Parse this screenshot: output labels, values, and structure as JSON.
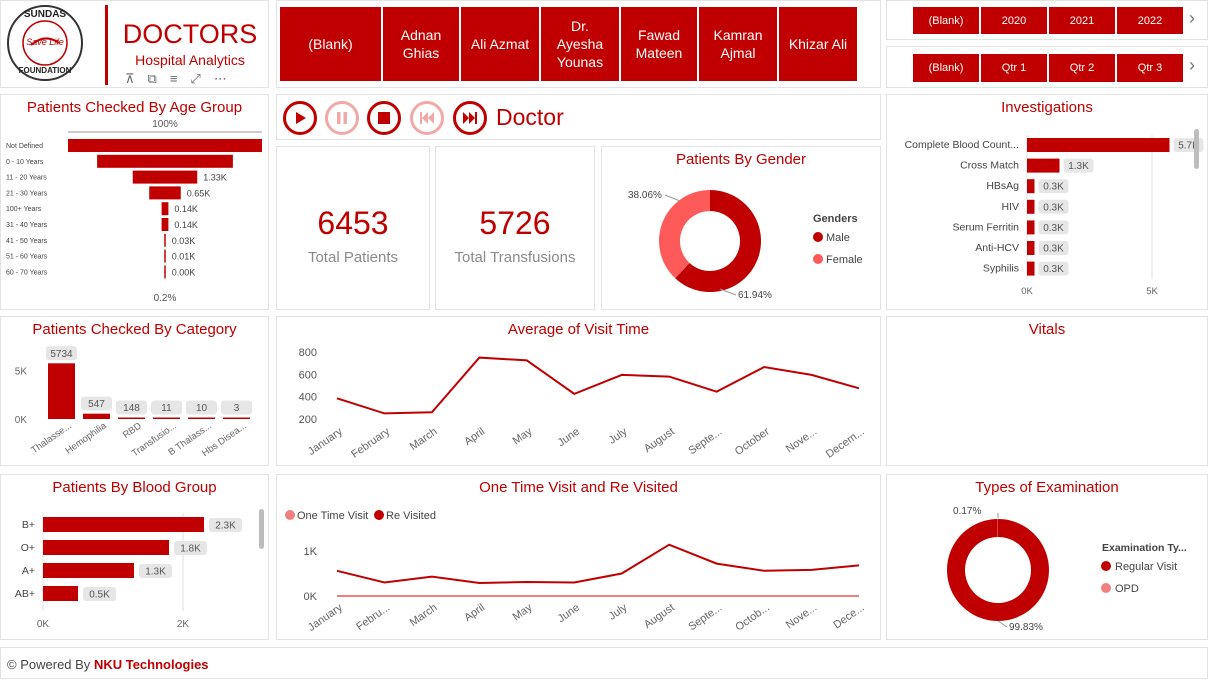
{
  "brand": {
    "logo_top": "SUNDAS",
    "logo_mid": "Save Life",
    "logo_bottom": "FOUNDATION",
    "title": "DOCTORS",
    "subtitle": "Hospital Analytics"
  },
  "doctor_slicer": {
    "items": [
      "(Blank)",
      "Adnan Ghias",
      "Ali Azmat",
      "Dr. Ayesha Younas",
      "Fawad Mateen",
      "Kamran Ajmal",
      "Khizar Ali"
    ]
  },
  "year_slicer": {
    "items": [
      "(Blank)",
      "2020",
      "2021",
      "2022"
    ]
  },
  "quarter_slicer": {
    "items": [
      "(Blank)",
      "Qtr 1",
      "Qtr 2",
      "Qtr 3"
    ]
  },
  "play_axis": {
    "label": "Doctor"
  },
  "kpis": {
    "total_patients": {
      "value": "6453",
      "label": "Total Patients"
    },
    "total_transfusions": {
      "value": "5726",
      "label": "Total Transfusions"
    }
  },
  "colors": {
    "accent": "#c00000",
    "light": "#ff5a5a",
    "pink": "#f08080",
    "grey_chip": "#e6e6e6"
  },
  "footer": {
    "prefix": "Powered By",
    "company": "NKU Technologies",
    "copyright": "©"
  },
  "charts": {
    "age_group": {
      "type": "funnel",
      "title": "Patients Checked By Age Group",
      "top_pct": "100%",
      "bottom_pct": "0.2%",
      "categories": [
        "Not Defined",
        "0 - 10 Years",
        "11 - 20 Years",
        "21 - 30 Years",
        "100+ Years",
        "31 - 40 Years",
        "41 - 50 Years",
        "51 - 60 Years",
        "60 - 70 Years"
      ],
      "values": [
        4.0,
        2.8,
        1.33,
        0.65,
        0.14,
        0.14,
        0.03,
        0.01,
        0.004
      ],
      "labels": [
        "",
        "",
        "1.33K",
        "0.65K",
        "0.14K",
        "0.14K",
        "0.03K",
        "0.01K",
        "0.00K"
      ]
    },
    "gender": {
      "type": "pie",
      "title": "Patients By Gender",
      "legend_title": "Genders",
      "categories": [
        "Male",
        "Female"
      ],
      "values": [
        61.94,
        38.06
      ],
      "labels": [
        "61.94%",
        "38.06%"
      ]
    },
    "investigations": {
      "type": "bar",
      "title": "Investigations",
      "categories": [
        "Complete Blood Count...",
        "Cross Match",
        "HBsAg",
        "HIV",
        "Serum Ferritin",
        "Anti-HCV",
        "Syphilis"
      ],
      "values": [
        5.7,
        1.3,
        0.3,
        0.3,
        0.3,
        0.3,
        0.3
      ],
      "labels": [
        "5.7K",
        "1.3K",
        "0.3K",
        "0.3K",
        "0.3K",
        "0.3K",
        "0.3K"
      ],
      "xticks": [
        "0K",
        "5K"
      ],
      "xlim": [
        0,
        6
      ]
    },
    "category": {
      "type": "bar",
      "title": "Patients Checked By Category",
      "categories": [
        "Thalasse...",
        "Hemophilia",
        "RBD",
        "Transfusio...",
        "B Thalass...",
        "Hbs Disea..."
      ],
      "values": [
        5734,
        547,
        148,
        11,
        10,
        3
      ],
      "labels": [
        "5734",
        "547",
        "148",
        "11",
        "10",
        "3"
      ],
      "yticks": [
        "5K",
        "0K"
      ],
      "ylim": [
        0,
        7000
      ]
    },
    "visit_time": {
      "type": "line",
      "title": "Average of Visit Time",
      "categories": [
        "January",
        "February",
        "March",
        "April",
        "May",
        "June",
        "July",
        "August",
        "Septe...",
        "October",
        "Nove...",
        "Decem..."
      ],
      "values": [
        385,
        250,
        260,
        750,
        725,
        425,
        595,
        580,
        445,
        665,
        595,
        475
      ],
      "yticks": [
        "800",
        "600",
        "400",
        "200"
      ],
      "ylim": [
        200,
        800
      ]
    },
    "vitals": {
      "title": "Vitals"
    },
    "blood_group": {
      "type": "bar",
      "title": "Patients By Blood Group",
      "categories": [
        "B+",
        "O+",
        "A+",
        "AB+"
      ],
      "values": [
        2.3,
        1.8,
        1.3,
        0.5
      ],
      "labels": [
        "2.3K",
        "1.8K",
        "1.3K",
        "0.5K"
      ],
      "xticks": [
        "0K",
        "2K"
      ],
      "xlim": [
        0,
        2.8
      ]
    },
    "visits": {
      "type": "line",
      "title": "One Time Visit and Re Visited",
      "legend": [
        "One Time Visit",
        "Re Visited"
      ],
      "categories": [
        "January",
        "Febru...",
        "March",
        "April",
        "May",
        "June",
        "July",
        "August",
        "Septe...",
        "Octob...",
        "Nove...",
        "Dece..."
      ],
      "series": [
        {
          "name": "One Time Visit",
          "values": [
            0,
            0,
            0,
            0,
            0,
            0,
            0,
            0,
            0,
            0,
            0,
            0
          ]
        },
        {
          "name": "Re Visited",
          "values": [
            560,
            300,
            430,
            290,
            310,
            300,
            500,
            1140,
            720,
            560,
            580,
            680
          ]
        }
      ],
      "yticks": [
        "1K",
        "0K"
      ],
      "ylim": [
        0,
        1400
      ]
    },
    "examination": {
      "type": "pie",
      "title": "Types of Examination",
      "legend_title": "Examination Ty...",
      "categories": [
        "Regular Visit",
        "OPD"
      ],
      "values": [
        99.83,
        0.17
      ],
      "labels": [
        "99.83%",
        "0.17%"
      ]
    }
  }
}
